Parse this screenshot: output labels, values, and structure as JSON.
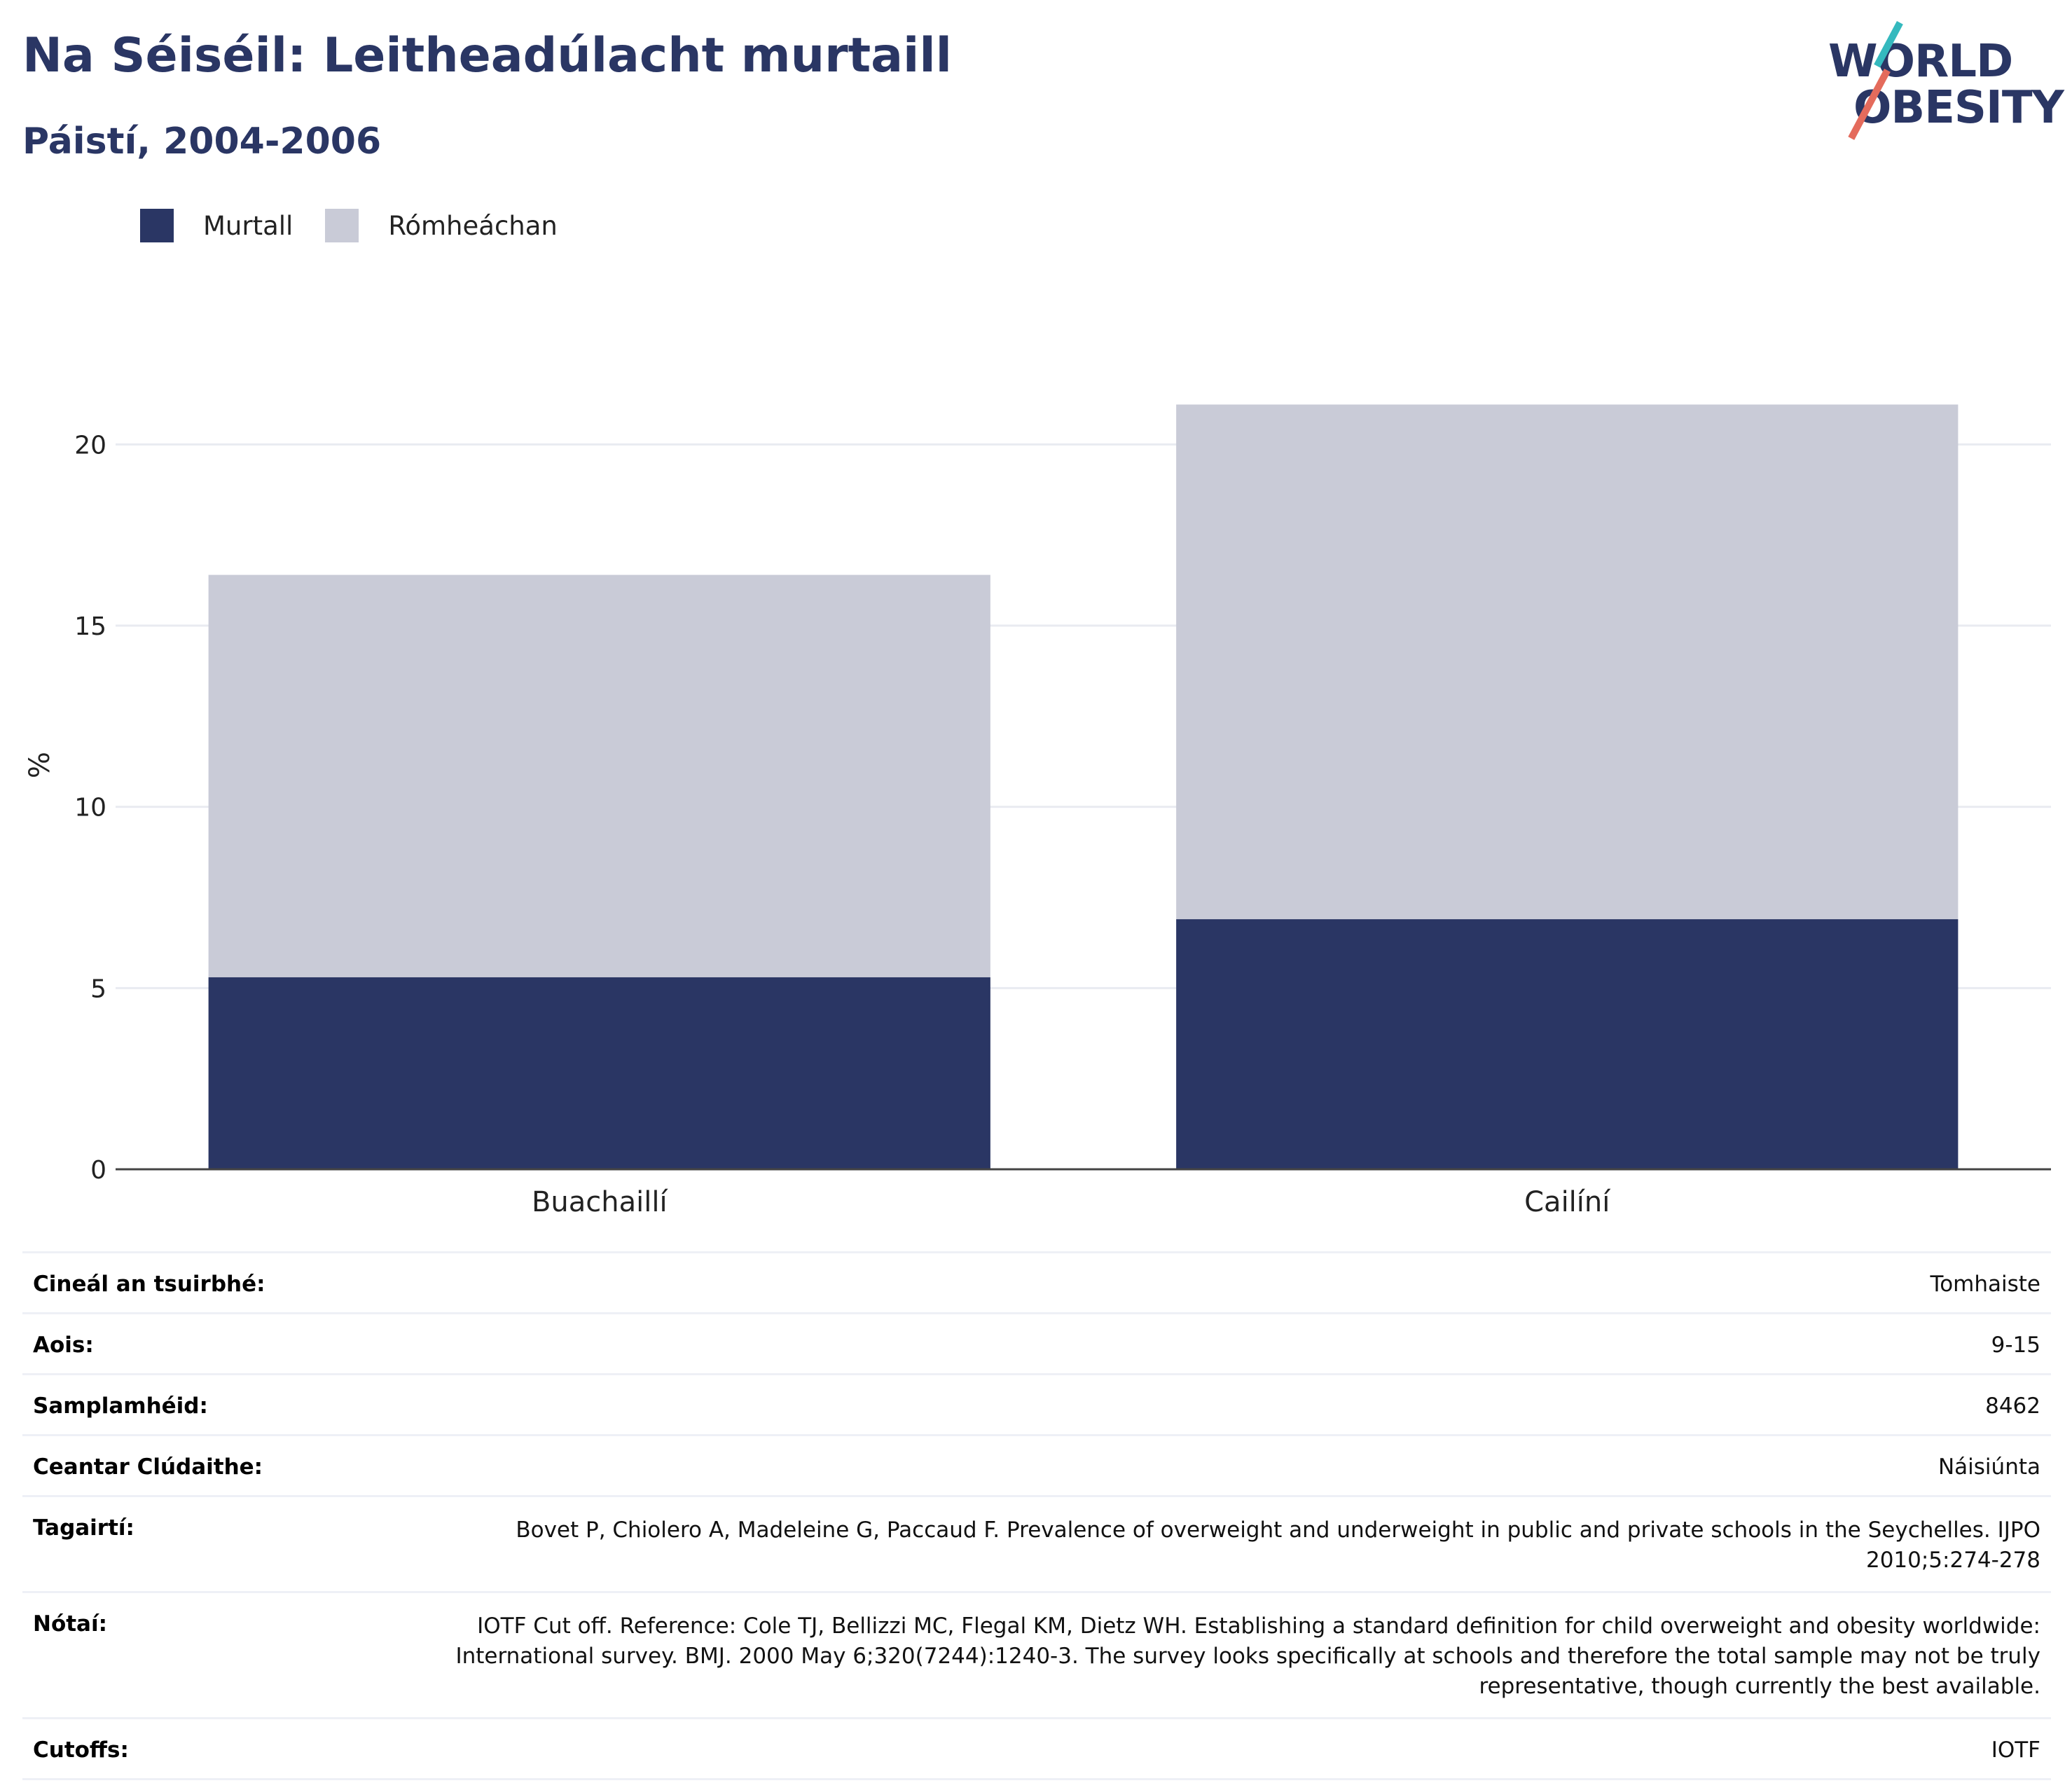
{
  "header": {
    "title": "Na Séiséil: Leitheadúlacht murtaill",
    "subtitle": "Páistí, 2004-2006"
  },
  "logo": {
    "line1": "WORLD",
    "line2": "OBESITY",
    "colors": {
      "text": "#2a3664",
      "teal": "#35b9be",
      "red": "#e46b5c"
    }
  },
  "chart_data": {
    "type": "bar",
    "stacked": true,
    "categories": [
      "Buachaillí",
      "Cailíní"
    ],
    "series": [
      {
        "name": "Murtall",
        "values": [
          5.3,
          6.9
        ],
        "color": "#2a3664"
      },
      {
        "name": "Rómheáchan",
        "values": [
          11.1,
          14.2
        ],
        "color": "#c9cbd7"
      }
    ],
    "ylabel": "%",
    "ylim": [
      0,
      22.5
    ],
    "yticks": [
      0,
      5,
      10,
      15,
      20
    ],
    "grid": true,
    "legend": "top-left"
  },
  "meta": [
    {
      "label": "Cineál an tsuirbhé:",
      "value": "Tomhaiste"
    },
    {
      "label": "Aois:",
      "value": "9-15"
    },
    {
      "label": "Samplamhéid:",
      "value": "8462"
    },
    {
      "label": "Ceantar Clúdaithe:",
      "value": "Náisiúnta"
    },
    {
      "label": "Tagairtí:",
      "value": "Bovet P, Chiolero A, Madeleine G, Paccaud F. Prevalence of overweight and underweight in public and private schools in the Seychelles. IJPO 2010;5:274-278"
    },
    {
      "label": "Nótaí:",
      "value": "IOTF Cut off. Reference: Cole TJ, Bellizzi MC, Flegal KM, Dietz WH. Establishing a standard definition for child overweight and obesity worldwide: International survey. BMJ. 2000 May 6;320(7244):1240-3. The survey looks specifically at schools and therefore the total sample may not be truly representative, though currently the best available."
    },
    {
      "label": "Cutoffs:",
      "value": "IOTF"
    }
  ]
}
